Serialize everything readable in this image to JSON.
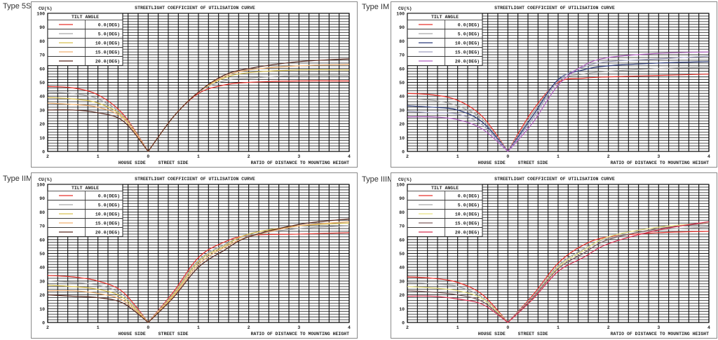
{
  "chart_data": [
    {
      "type": "line",
      "panel_label": "Type 5S",
      "title": "STREETLIGHT COEFFICIENT OF UTILISATION CURVE",
      "ylabel": "CU(%)",
      "ylim": [
        0,
        100
      ],
      "yticks": [
        "0",
        "10",
        "20",
        "30",
        "40",
        "50",
        "60",
        "70",
        "80",
        "90",
        "100"
      ],
      "xticks": [
        "2",
        "1",
        "0",
        "1",
        "2",
        "3",
        "4"
      ],
      "xlabel_house": "HOUSE SIDE",
      "xlabel_street": "STREET SIDE",
      "xlabel": "RATIO OF DISTANCE TO MOUNTING HEIGHT",
      "grid": true,
      "legend_title": "TILT ANGLE",
      "legend_placement": "top-left",
      "house_x": [
        2,
        1.5,
        1,
        0.5,
        0
      ],
      "street_x": [
        0,
        0.5,
        1,
        1.5,
        2,
        3,
        4
      ],
      "series": [
        {
          "name": "0.0(DEG)",
          "color": "#e8302a",
          "house": [
            47,
            46,
            41,
            27,
            0
          ],
          "street": [
            0,
            25,
            42,
            48,
            50,
            51,
            51
          ]
        },
        {
          "name": "5.0(DEG)",
          "color": "#a8a8a8",
          "house": [
            43,
            42,
            38,
            26,
            0
          ],
          "street": [
            0,
            25,
            43,
            51,
            53,
            55,
            55
          ]
        },
        {
          "name": "10.0(DEG)",
          "color": "#d8c050",
          "house": [
            39,
            38,
            35,
            25,
            0
          ],
          "street": [
            0,
            25,
            43,
            53,
            57,
            59,
            59
          ]
        },
        {
          "name": "15.0(DEG)",
          "color": "#f0b070",
          "house": [
            35,
            34,
            32,
            24,
            0
          ],
          "street": [
            0,
            25,
            43,
            54,
            59,
            62,
            63
          ]
        },
        {
          "name": "20.0(DEG)",
          "color": "#5a2a20",
          "house": [
            30,
            30,
            28,
            22,
            0
          ],
          "street": [
            0,
            25,
            43,
            55,
            60,
            65,
            67
          ]
        }
      ]
    },
    {
      "type": "line",
      "panel_label": "Type IM",
      "title": "STREETLIGHT COEFFICIENT OF UTILISATION CURVE",
      "ylabel": "CU(%)",
      "ylim": [
        0,
        100
      ],
      "yticks": [
        "0",
        "10",
        "20",
        "30",
        "40",
        "50",
        "60",
        "70",
        "80",
        "90",
        "100"
      ],
      "xticks": [
        "2",
        "1",
        "0",
        "1",
        "2",
        "3",
        "4"
      ],
      "xlabel_house": "HOUSE SIDE",
      "xlabel_street": "STREET SIDE",
      "xlabel": "RATIO OF DISTANCE TO MOUNTING HEIGHT",
      "grid": true,
      "legend_title": "TILT ANGLE",
      "legend_placement": "top-left",
      "house_x": [
        2,
        1.5,
        1,
        0.5,
        0
      ],
      "street_x": [
        0,
        0.5,
        1,
        1.5,
        2,
        3,
        4
      ],
      "series": [
        {
          "name": "0.0(DEG)",
          "color": "#e8302a",
          "house": [
            42,
            41,
            37,
            25,
            0
          ],
          "street": [
            0,
            30,
            50,
            53,
            54,
            55,
            56
          ]
        },
        {
          "name": "5.0(DEG)",
          "color": "#a8a8a8",
          "house": [
            38,
            37,
            33,
            23,
            0
          ],
          "street": [
            0,
            28,
            51,
            56,
            58,
            60,
            61
          ]
        },
        {
          "name": "10.0(DEG)",
          "color": "#2a3a7a",
          "house": [
            33,
            32,
            30,
            21,
            0
          ],
          "street": [
            0,
            26,
            52,
            59,
            62,
            64,
            65
          ]
        },
        {
          "name": "15.0(DEG)",
          "color": "#a0a0c0",
          "house": [
            29,
            28,
            27,
            19,
            0
          ],
          "street": [
            0,
            24,
            51,
            61,
            65,
            67,
            69
          ]
        },
        {
          "name": "20.0(DEG)",
          "color": "#b060c0",
          "house": [
            25,
            25,
            23,
            16,
            0
          ],
          "street": [
            0,
            21,
            48,
            62,
            68,
            71,
            72
          ]
        }
      ]
    },
    {
      "type": "line",
      "panel_label": "Type IIM",
      "title": "STREETLIGHT COEFFICIENT OF UTILISATION CURVE",
      "ylabel": "CU(%)",
      "ylim": [
        0,
        100
      ],
      "yticks": [
        "0",
        "10",
        "20",
        "30",
        "40",
        "50",
        "60",
        "70",
        "80",
        "90",
        "100"
      ],
      "xticks": [
        "2",
        "1",
        "0",
        "1",
        "2",
        "3",
        "4"
      ],
      "xlabel_house": "HOUSE SIDE",
      "xlabel_street": "STREET SIDE",
      "xlabel": "RATIO OF DISTANCE TO MOUNTING HEIGHT",
      "grid": true,
      "legend_title": "TILT ANGLE",
      "legend_placement": "top-left",
      "house_x": [
        2,
        1.5,
        1,
        0.5,
        0
      ],
      "street_x": [
        0,
        0.5,
        1,
        1.5,
        2,
        3,
        4
      ],
      "series": [
        {
          "name": "0.0(DEG)",
          "color": "#e8302a",
          "house": [
            34,
            33,
            30,
            22,
            0
          ],
          "street": [
            0,
            22,
            47,
            58,
            63,
            64,
            65
          ]
        },
        {
          "name": "5.0(DEG)",
          "color": "#a8a8a8",
          "house": [
            30,
            29,
            27,
            20,
            0
          ],
          "street": [
            0,
            21,
            45,
            56,
            63,
            68,
            70
          ]
        },
        {
          "name": "10.0(DEG)",
          "color": "#d8c050",
          "house": [
            27,
            26,
            24,
            18,
            0
          ],
          "street": [
            0,
            20,
            44,
            55,
            64,
            70,
            72
          ]
        },
        {
          "name": "15.0(DEG)",
          "color": "#f0b070",
          "house": [
            23,
            23,
            21,
            16,
            0
          ],
          "street": [
            0,
            19,
            42,
            54,
            62,
            70,
            73
          ]
        },
        {
          "name": "20.0(DEG)",
          "color": "#5a2a20",
          "house": [
            20,
            19,
            18,
            14,
            0
          ],
          "street": [
            0,
            18,
            40,
            52,
            62,
            71,
            75
          ]
        }
      ]
    },
    {
      "type": "line",
      "panel_label": "Type IIIM",
      "title": "STREETLIGHT COEFFICIENT OF UTILISATION CURVE",
      "ylabel": "CU(%)",
      "ylim": [
        0,
        100
      ],
      "yticks": [
        "0",
        "10",
        "20",
        "30",
        "40",
        "50",
        "60",
        "70",
        "80",
        "90",
        "100"
      ],
      "xticks": [
        "2",
        "1",
        "0",
        "1",
        "2",
        "3",
        "4"
      ],
      "xlabel_house": "HOUSE SIDE",
      "xlabel_street": "STREET SIDE",
      "xlabel": "RATIO OF DISTANCE TO MOUNTING HEIGHT",
      "grid": true,
      "legend_title": "TILT ANGLE",
      "legend_placement": "top-left",
      "house_x": [
        2,
        1.5,
        1,
        0.5,
        0
      ],
      "street_x": [
        0,
        0.5,
        1,
        1.5,
        2,
        3,
        4
      ],
      "series": [
        {
          "name": "0.0(DEG)",
          "color": "#e8302a",
          "house": [
            33,
            32,
            29,
            20,
            0
          ],
          "street": [
            0,
            20,
            43,
            56,
            62,
            65,
            66
          ]
        },
        {
          "name": "5.0(DEG)",
          "color": "#a8a8a8",
          "house": [
            29,
            28,
            26,
            18,
            0
          ],
          "street": [
            0,
            19,
            41,
            53,
            61,
            67,
            69
          ]
        },
        {
          "name": "10.0(DEG)",
          "color": "#e8e080",
          "house": [
            26,
            25,
            23,
            17,
            0
          ],
          "street": [
            0,
            18,
            40,
            52,
            62,
            69,
            72
          ]
        },
        {
          "name": "15.0(DEG)",
          "color": "#806060",
          "house": [
            23,
            22,
            20,
            15,
            0
          ],
          "street": [
            0,
            18,
            39,
            50,
            60,
            68,
            72
          ]
        },
        {
          "name": "20.0(DEG)",
          "color": "#d83050",
          "house": [
            19,
            19,
            17,
            13,
            0
          ],
          "street": [
            0,
            17,
            37,
            47,
            57,
            67,
            73
          ]
        }
      ]
    }
  ]
}
